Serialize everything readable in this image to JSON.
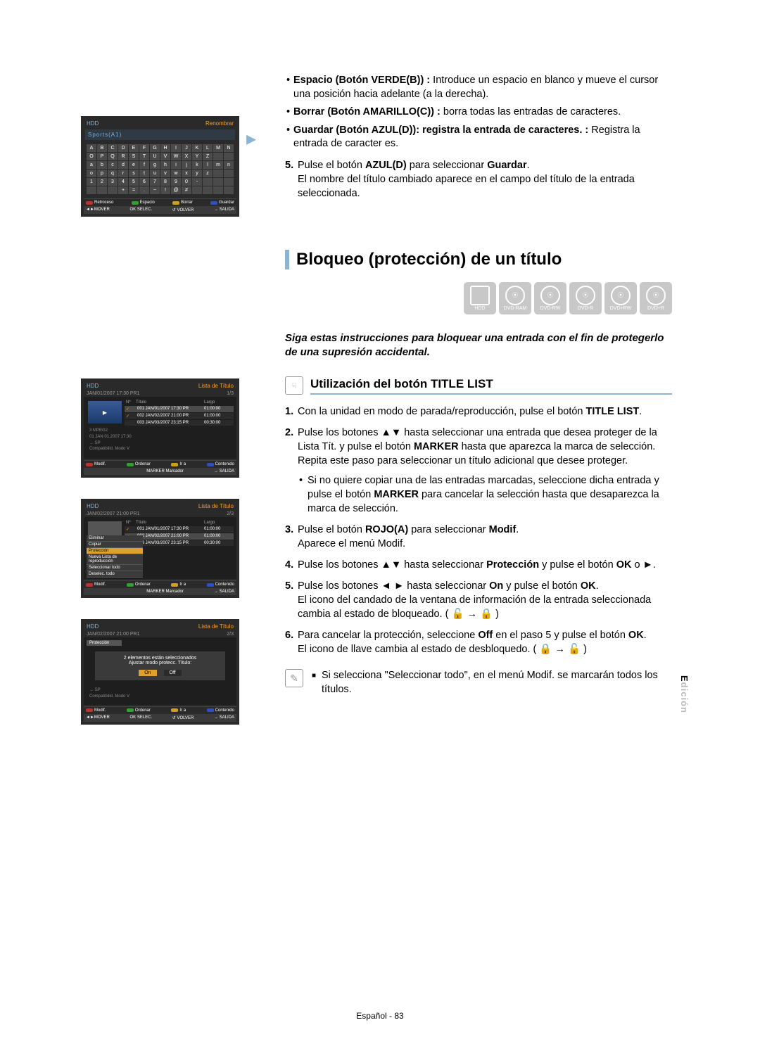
{
  "top_shot": {
    "header_left": "HDD",
    "header_right": "Renombrar",
    "input_text": "Sports(A1)",
    "keys_row1": [
      "A",
      "B",
      "C",
      "D",
      "E",
      "F",
      "G",
      "H",
      "I",
      "J",
      "K",
      "L",
      "M",
      "N"
    ],
    "keys_row2": [
      "O",
      "P",
      "Q",
      "R",
      "S",
      "T",
      "U",
      "V",
      "W",
      "X",
      "Y",
      "Z",
      " ",
      " "
    ],
    "keys_row3": [
      "a",
      "b",
      "c",
      "d",
      "e",
      "f",
      "g",
      "h",
      "i",
      "j",
      "k",
      "l",
      "m",
      "n"
    ],
    "keys_row4": [
      "o",
      "p",
      "q",
      "r",
      "s",
      "t",
      "u",
      "v",
      "w",
      "x",
      "y",
      "z",
      " ",
      " "
    ],
    "keys_row5": [
      "1",
      "2",
      "3",
      "4",
      "5",
      "6",
      "7",
      "8",
      "9",
      "0",
      "-",
      " ",
      " ",
      " "
    ],
    "keys_row6": [
      " ",
      " ",
      " ",
      "+",
      "=",
      ".",
      "~",
      "!",
      "@",
      "#",
      " ",
      " ",
      " ",
      " "
    ],
    "footer": [
      [
        "red",
        "Retroceso"
      ],
      [
        "green",
        "Espacio"
      ],
      [
        "yellow",
        "Borrar"
      ],
      [
        "blue",
        "Guardar"
      ]
    ],
    "nav": [
      "◄►MOVER",
      "OK SELEC.",
      "↺ VOLVER",
      "→ SALIDA"
    ]
  },
  "bullets": [
    {
      "bold": "Espacio (Botón VERDE(B)) :",
      "text": " Introduce un espacio en blanco y mueve el cursor una posición hacia adelante (a la derecha)."
    },
    {
      "bold": "Borrar (Botón AMARILLO(C)) :",
      "text": " borra todas las entradas de caracteres."
    },
    {
      "bold": "Guardar (Botón AZUL(D)): registra la entrada de caracteres. :",
      "text": " Registra la entrada de caracter es."
    }
  ],
  "step5": {
    "num": "5.",
    "pre": "Pulse el botón ",
    "bold1": "AZUL(D)",
    "mid": " para seleccionar ",
    "bold2": "Guardar",
    "post": ".",
    "line2": "El nombre del título cambiado aparece en el campo del título de la entrada seleccionada."
  },
  "section_title": "Bloqueo (protección) de un título",
  "discs": [
    "HDD",
    "DVD-RAM",
    "DVD-RW",
    "DVD-R",
    "DVD+RW",
    "DVD+R"
  ],
  "intro": "Siga estas instrucciones para bloquear una entrada con el fin de protegerlo de una supresión accidental.",
  "subhead": "Utilización del botón TITLE LIST",
  "steps": [
    {
      "n": "1.",
      "parts": [
        "Con la unidad en modo de parada/reproducción, pulse el botón ",
        {
          "b": "TITLE LIST"
        },
        "."
      ]
    },
    {
      "n": "2.",
      "parts": [
        "Pulse los botones ▲▼ hasta seleccionar una entrada que desea proteger de la Lista Tít. y pulse el botón ",
        {
          "b": "MARKER"
        },
        " hasta que aparezca la marca de selección."
      ],
      "extra": "Repita este paso para seleccionar un título adicional que desee proteger.",
      "sub": [
        "Si no quiere copiar una de las entradas marcadas, seleccione dicha entrada y pulse el botón ",
        {
          "b": "MARKER"
        },
        " para cancelar la selección hasta que desaparezca la marca de selección."
      ]
    },
    {
      "n": "3.",
      "parts": [
        "Pulse el botón ",
        {
          "b": "ROJO(A)"
        },
        " para seleccionar ",
        {
          "b": "Modif"
        },
        "."
      ],
      "extra": "Aparece el menú Modif."
    },
    {
      "n": "4.",
      "parts": [
        "Pulse los botones ▲▼ hasta seleccionar ",
        {
          "b": "Protección"
        },
        " y pulse el botón ",
        {
          "b": "OK"
        },
        " o ►."
      ]
    },
    {
      "n": "5.",
      "parts": [
        "Pulse los botones ◄ ► hasta seleccionar ",
        {
          "b": "On"
        },
        " y pulse el botón ",
        {
          "b": "OK"
        },
        "."
      ],
      "extra_html": "El icono del candado de la ventana de información de la entrada seleccionada cambia al estado de bloqueado. ( 🔓 → 🔒 )"
    },
    {
      "n": "6.",
      "parts": [
        "Para cancelar la protección, seleccione ",
        {
          "b": "Off"
        },
        " en el paso 5 y pulse el botón ",
        {
          "b": "OK"
        },
        "."
      ],
      "extra_html": "El icono de llave cambia al estado de desbloquedo. ( 🔒 →  🔓 )"
    }
  ],
  "note": "Si selecciona \"Seleccionar todo\", en el menú Modif. se marcarán todos los títulos.",
  "tl1": {
    "header_left": "HDD",
    "header_right": "Lista de Título",
    "date": "JAN/01/2007 17:30 PR1",
    "page": "1/3",
    "cols": [
      "Nº",
      "Título",
      "Largo"
    ],
    "rows": [
      [
        "001",
        "JAN/01/2007 17:30 PR",
        "01:00:00"
      ],
      [
        "002",
        "JAN/02/2007 21:00 PR",
        "01:00:00"
      ],
      [
        "003",
        "JAN/03/2007 23:15 PR",
        "00:30:00"
      ]
    ],
    "meta": [
      "3  MPEG2",
      "01 JAN 01.2007 17:30",
      "→ SP",
      "Compatibilid. Modo V"
    ],
    "footer": [
      [
        "red",
        "Modif."
      ],
      [
        "green",
        "Ordenar"
      ],
      [
        "yellow",
        "Ir a"
      ],
      [
        "blue",
        "Contenido"
      ]
    ],
    "nav": [
      "",
      "",
      "MARKER Marcador",
      "→ SALIDA"
    ]
  },
  "tl2": {
    "header_left": "HDD",
    "header_right": "Lista de Título",
    "date": "JAN/02/2007 21:00 PR1",
    "page": "2/3",
    "cols": [
      "Nº",
      "Título",
      "Largo"
    ],
    "rows": [
      [
        "001",
        "JAN/01/2007 17:30 PR",
        "01:00:00"
      ],
      [
        "002",
        "JAN/02/2007 21:00 PR",
        "01:00:00"
      ],
      [
        "003",
        "JAN/03/2007 23:15 PR",
        "00:30:00"
      ]
    ],
    "menu": [
      "Eliminar",
      "Copiar",
      "Protección",
      "Nueva Lista de reproducción",
      "Seleccionar todo",
      "Deselec. todo"
    ],
    "menu_sel": 2,
    "footer": [
      [
        "red",
        "Modif."
      ],
      [
        "green",
        "Ordenar"
      ],
      [
        "yellow",
        "Ir a"
      ],
      [
        "blue",
        "Contenido"
      ]
    ],
    "nav": [
      "",
      "",
      "MARKER Marcador",
      "→ SALIDA"
    ]
  },
  "tl3": {
    "header_left": "HDD",
    "header_right": "Lista de Título",
    "date": "JAN/02/2007 21:00 PR1",
    "page": "2/3",
    "dlg_title": "Protección",
    "dlg_line1": "2 elementos están seleccionados",
    "dlg_line2": "Ajustar modo protecc. Título:",
    "on": "On",
    "off": "Off",
    "meta": [
      "→ SP",
      "Compatibilid. Modo V"
    ],
    "footer": [
      [
        "red",
        "Modif."
      ],
      [
        "green",
        "Ordenar"
      ],
      [
        "yellow",
        "Ir a"
      ],
      [
        "blue",
        "Contenido"
      ]
    ],
    "nav": [
      "◄►MOVER",
      "OK SELEC.",
      "↺ VOLVER",
      "→ SALIDA"
    ]
  },
  "side_tab": "Edición",
  "footer": "Español - 83"
}
